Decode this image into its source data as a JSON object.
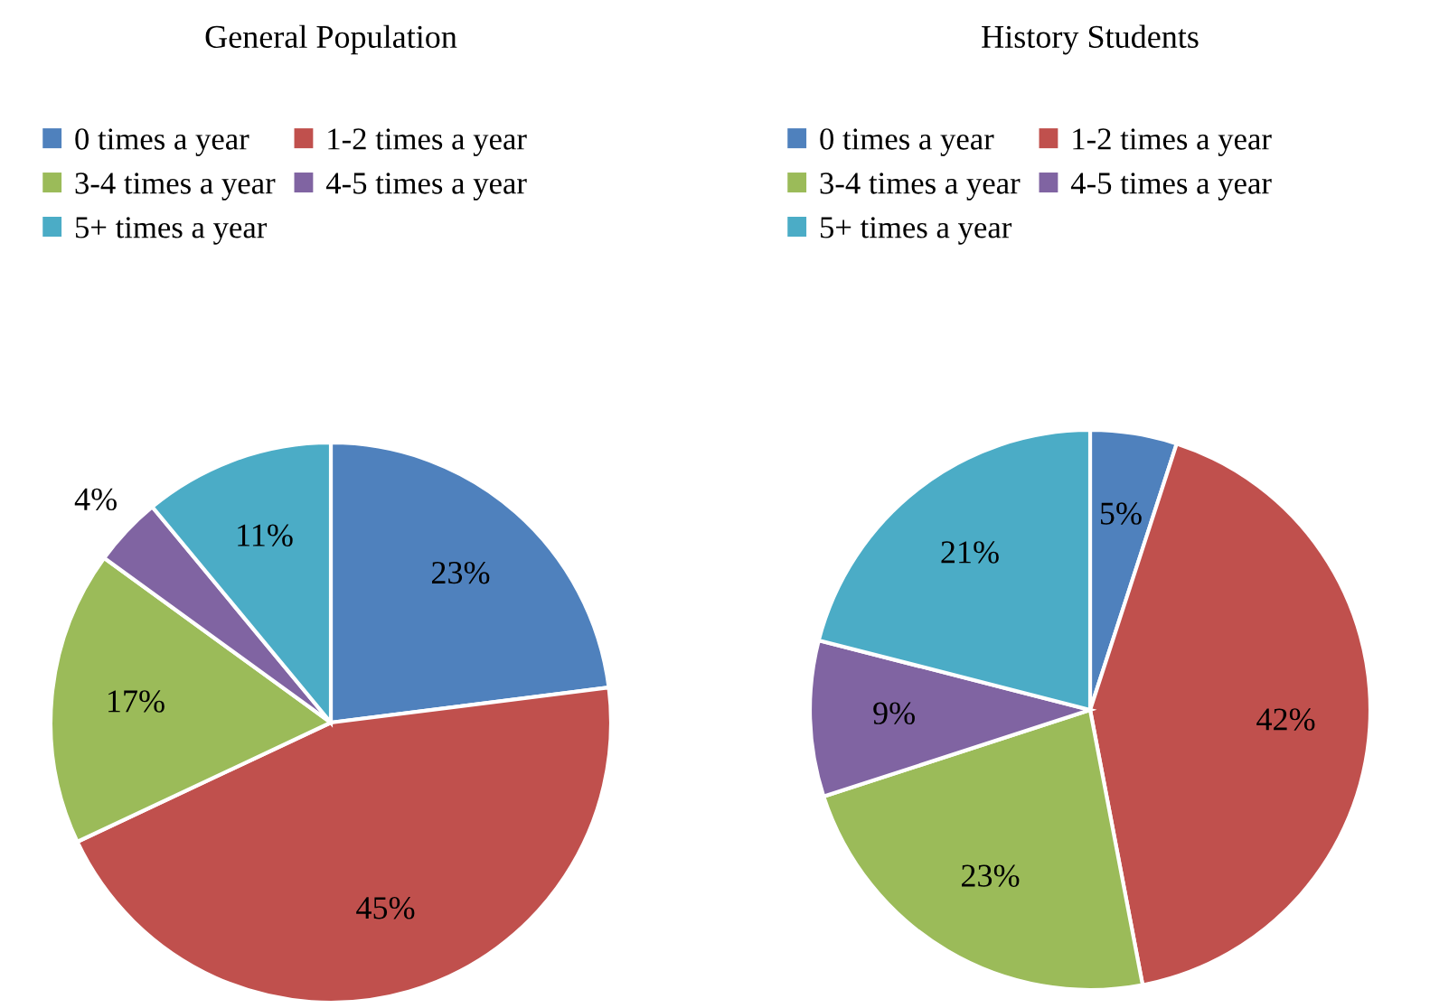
{
  "chart_data": [
    {
      "type": "pie",
      "title": "General Population",
      "categories": [
        "0 times a year",
        "1-2 times a year",
        "3-4 times a year",
        "4-5 times a year",
        "5+ times a year"
      ],
      "values": [
        23,
        45,
        17,
        4,
        11
      ],
      "value_labels": [
        "23%",
        "45%",
        "17%",
        "4%",
        "11%"
      ],
      "colors": [
        "#4f81bd",
        "#c0504d",
        "#9bbb59",
        "#8064a2",
        "#4bacc6"
      ],
      "legend": "top"
    },
    {
      "type": "pie",
      "title": "History Students",
      "categories": [
        "0 times a year",
        "1-2 times a year",
        "3-4 times a year",
        "4-5 times a year",
        "5+ times a year"
      ],
      "values": [
        5,
        42,
        23,
        9,
        21
      ],
      "value_labels": [
        "5%",
        "42%",
        "23%",
        "9%",
        "21%"
      ],
      "colors": [
        "#4f81bd",
        "#c0504d",
        "#9bbb59",
        "#8064a2",
        "#4bacc6"
      ],
      "legend": "top"
    }
  ]
}
